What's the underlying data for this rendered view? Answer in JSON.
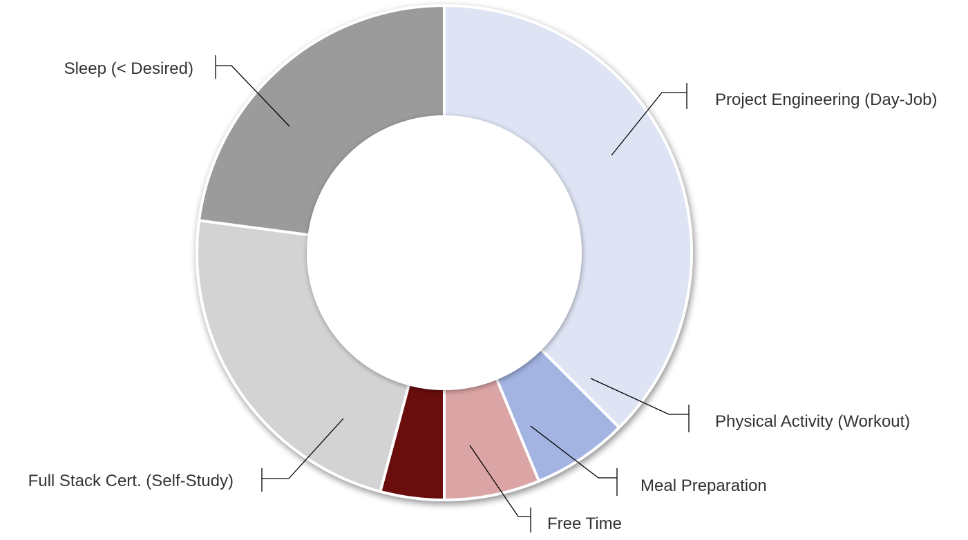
{
  "chart_data": {
    "type": "pie",
    "donut": true,
    "title": "",
    "legend": "none",
    "slices": [
      {
        "label": "Project Engineering (Day-Job)",
        "value": 9.0,
        "color": "#dfe4f5"
      },
      {
        "label": "Physical Activity (Workout)",
        "value": 1.5,
        "color": "#a3b3e2"
      },
      {
        "label": "Meal Preparation",
        "value": 1.5,
        "color": "#dca5a5"
      },
      {
        "label": "Free Time",
        "value": 1.0,
        "color": "#6b0f0c"
      },
      {
        "label": "Full Stack Cert. (Self-Study)",
        "value": 5.5,
        "color": "#d3d3d3"
      },
      {
        "label": "Sleep (< Desired)",
        "value": 5.5,
        "color": "#9b9b9b"
      }
    ]
  }
}
